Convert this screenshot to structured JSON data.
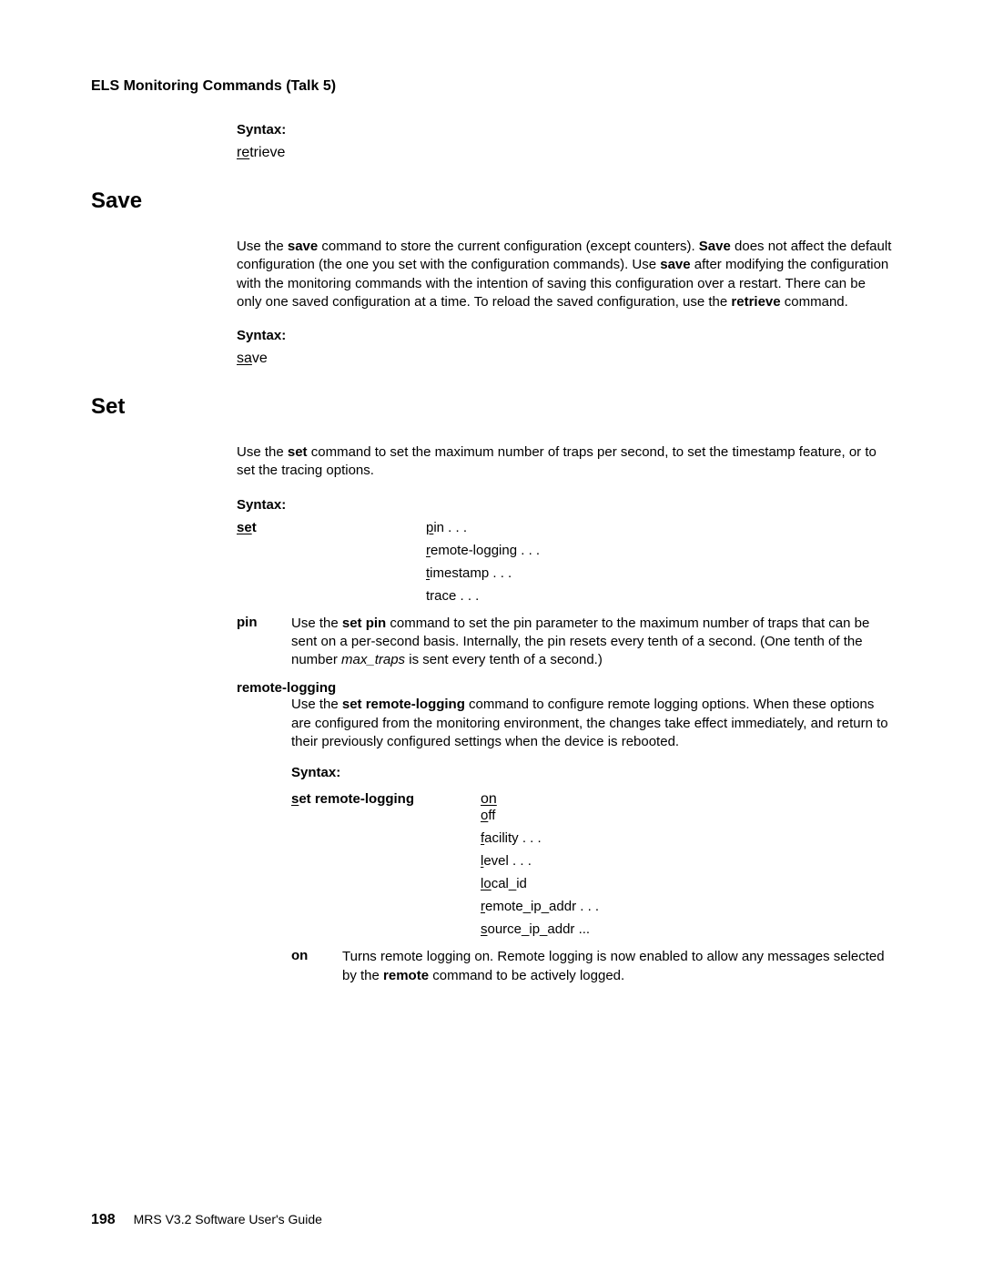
{
  "page": {
    "header": "ELS Monitoring Commands (Talk 5)",
    "footer_page": "198",
    "footer_text": "MRS V3.2 Software User's Guide"
  },
  "retrieve": {
    "syntax_label": "Syntax:",
    "command_ul": "re",
    "command_rest": "trieve"
  },
  "save": {
    "heading": "Save",
    "para_parts": {
      "p1": "Use the ",
      "b1": "save",
      "p2": " command to store the current configuration (except counters). ",
      "b2": "Save",
      "p3": " does not affect the default configuration (the one you set with the configuration commands). Use ",
      "b3": "save",
      "p4": " after modifying the configuration with the monitoring commands with the intention of saving this configuration over a restart. There can be only one saved configuration at a time. To reload the saved configuration, use the ",
      "b4": "retrieve",
      "p5": " command."
    },
    "syntax_label": "Syntax:",
    "command_ul": "sa",
    "command_rest": "ve"
  },
  "set": {
    "heading": "Set",
    "intro_parts": {
      "p1": "Use the ",
      "b1": "set",
      "p2": " command to set the maximum number of traps per second, to set the timestamp feature, or to set the tracing options."
    },
    "syntax_label": "Syntax:",
    "command_ul": "se",
    "command_rest": "t",
    "options": {
      "pin_u": "p",
      "pin_rest": "in . . .",
      "rl_u": "r",
      "rl_rest": "emote-logging . . .",
      "ts_u": "t",
      "ts_rest": "imestamp . . .",
      "tr": "trace . . ."
    },
    "pin": {
      "term": "pin",
      "d1": "Use the ",
      "b1": "set pin",
      "d2": " command to set the pin parameter to the maximum number of traps that can be sent on a per-second basis. Internally, the pin resets every tenth of a second. (One tenth of the number ",
      "i1": "max_traps",
      "d3": " is sent every tenth of a second.)"
    },
    "remote_logging": {
      "term": "remote-logging",
      "d1": "Use the ",
      "b1": "set remote-logging",
      "d2": " command to configure remote logging options. When these options are configured from the monitoring environment, the changes take effect immediately, and return to their previously configured settings when the device is rebooted.",
      "syntax_label": "Syntax:",
      "cmd_ul": "s",
      "cmd_rest": "et remote-logging",
      "opts": {
        "on_u": "on",
        "off_u": "o",
        "off_rest": "ff",
        "fac_u": "f",
        "fac_rest": "acility . . .",
        "lvl_u": "l",
        "lvl_rest": "evel . . .",
        "lid_u": "lo",
        "lid_rest": "cal_id",
        "rip_u": "r",
        "rip_rest": "emote_ip_addr . . .",
        "sip_u": "s",
        "sip_rest": "ource_ip_addr ..."
      },
      "on_def": {
        "term": "on",
        "d1": "Turns remote logging on. Remote logging is now enabled to allow any messages selected by the ",
        "b1": "remote",
        "d2": " command to be actively logged."
      }
    }
  }
}
